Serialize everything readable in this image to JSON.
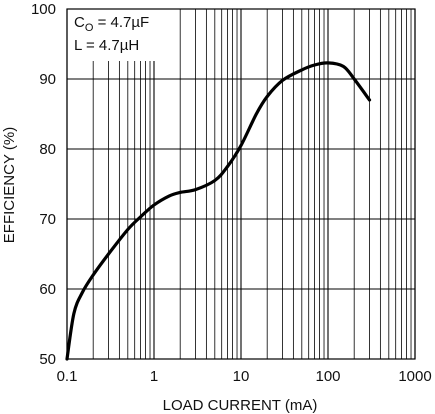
{
  "chart_data": {
    "type": "line",
    "title": "",
    "xlabel": "LOAD CURRENT (mA)",
    "ylabel": "EFFICIENCY (%)",
    "x_scale": "log",
    "xlim": [
      0.1,
      1000
    ],
    "ylim": [
      50,
      100
    ],
    "x_ticks": [
      0.1,
      1,
      10,
      100,
      1000
    ],
    "x_tick_labels": [
      "0.1",
      "1",
      "10",
      "100",
      "1000"
    ],
    "y_ticks": [
      50,
      60,
      70,
      80,
      90,
      100
    ],
    "y_tick_labels": [
      "50",
      "60",
      "70",
      "80",
      "90",
      "100"
    ],
    "grid": true,
    "legend": "none",
    "annotations": [
      {
        "base": "C",
        "sub": "O",
        "rest": " = 4.7µF"
      },
      {
        "base": "L = 4.7µH",
        "sub": "",
        "rest": ""
      }
    ],
    "series": [
      {
        "color": "#000000",
        "x": [
          0.1,
          0.12,
          0.15,
          0.2,
          0.3,
          0.5,
          0.7,
          1,
          1.5,
          2,
          3,
          5,
          7,
          10,
          15,
          20,
          30,
          50,
          70,
          100,
          150,
          200,
          300
        ],
        "y": [
          50,
          56.5,
          59.5,
          62,
          65,
          68.5,
          70.3,
          72,
          73.3,
          73.8,
          74.2,
          75.5,
          77.5,
          80.5,
          85,
          87.5,
          89.8,
          91.3,
          92,
          92.3,
          91.8,
          90,
          87
        ]
      }
    ]
  }
}
